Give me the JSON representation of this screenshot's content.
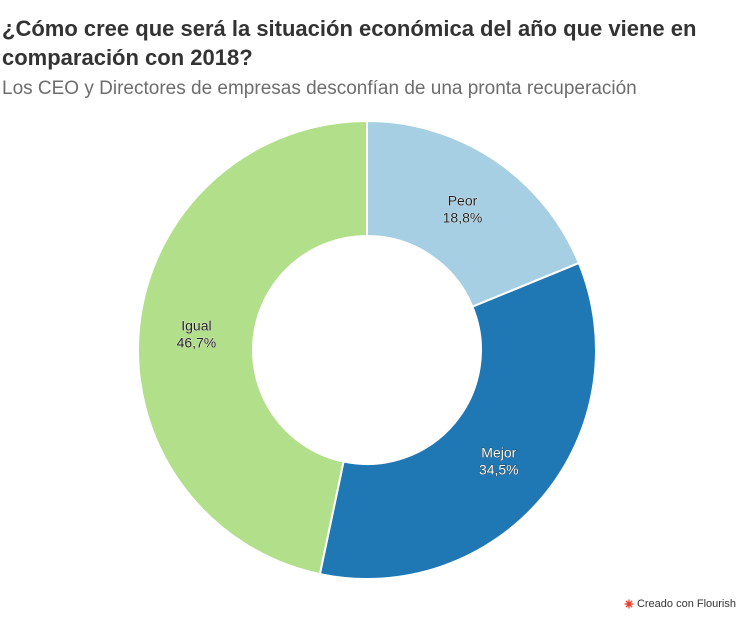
{
  "title": "¿Cómo cree que será la situación económica del año que viene en comparación con 2018?",
  "subtitle": "Los CEO y Directores de empresas desconfían de una pronta recuperación",
  "footer": {
    "credit": "Creado con Flourish",
    "logo_icon": "flourish-logo-icon",
    "logo_color": "#e8412c"
  },
  "chart_data": {
    "type": "pie",
    "variant": "donut",
    "start_angle_deg": 0,
    "direction": "clockwise",
    "slices": [
      {
        "label": "Peor",
        "value": 18.8,
        "value_label": "18,8%",
        "color": "#a6cfe3",
        "label_color": "#1f1f1f",
        "label_halo": "#ffffff"
      },
      {
        "label": "Mejor",
        "value": 34.5,
        "value_label": "34,5%",
        "color": "#1f78b4",
        "label_color": "#ffffff",
        "label_halo": "#1a1a1a"
      },
      {
        "label": "Igual",
        "value": 46.7,
        "value_label": "46,7%",
        "color": "#b2df8a",
        "label_color": "#1f1f1f",
        "label_halo": "#ffffff"
      }
    ]
  }
}
